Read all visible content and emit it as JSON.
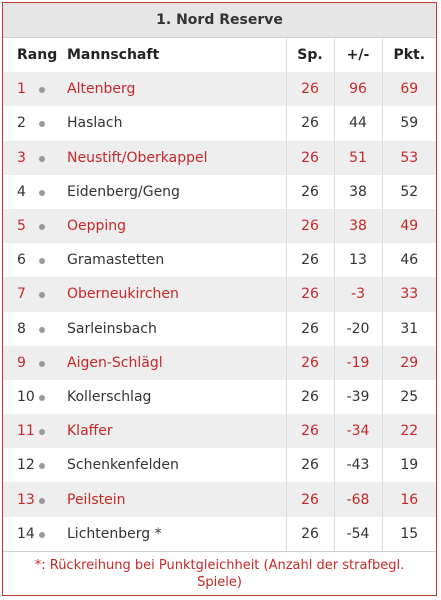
{
  "title": "1. Nord Reserve",
  "table": {
    "header": [
      "Rang",
      "Mannschaft",
      "Sp.",
      "+/-",
      "Pkt."
    ],
    "rows": [
      [
        1,
        "Altenberg",
        26,
        96,
        69
      ],
      [
        2,
        "Haslach",
        26,
        44,
        59
      ],
      [
        3,
        "Neustift/Oberkappel",
        26,
        51,
        53
      ],
      [
        4,
        "Eidenberg/Geng",
        26,
        38,
        52
      ],
      [
        5,
        "Oepping",
        26,
        38,
        49
      ],
      [
        6,
        "Gramastetten",
        26,
        13,
        46
      ],
      [
        7,
        "Oberneukirchen",
        26,
        -3,
        33
      ],
      [
        8,
        "Sarleinsbach",
        26,
        -20,
        31
      ],
      [
        9,
        "Aigen-Schlägl",
        26,
        -19,
        29
      ],
      [
        10,
        "Kollerschlag",
        26,
        -39,
        25
      ],
      [
        11,
        "Klaffer",
        26,
        -34,
        22
      ],
      [
        12,
        "Schenkenfelden",
        26,
        -43,
        19
      ],
      [
        13,
        "Peilstein",
        26,
        -68,
        16
      ],
      [
        14,
        "Lichtenberg *",
        26,
        -54,
        15
      ]
    ]
  },
  "footnote": "*: Rückreihung bei Punktgleichheit (Anzahl der strafbegl. Spiele)"
}
